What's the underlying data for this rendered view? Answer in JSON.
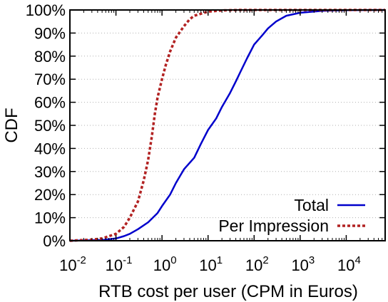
{
  "chart_data": {
    "type": "line",
    "xlabel": "RTB cost per user (CPM in Euros)",
    "ylabel": "CDF",
    "x_scale": "log",
    "xlim": [
      0.01,
      70000
    ],
    "ylim": [
      0,
      100
    ],
    "grid": true,
    "legend_position": "bottom-right",
    "x_ticks": [
      {
        "value": 0.01,
        "base": "10",
        "exp": "-2"
      },
      {
        "value": 0.1,
        "base": "10",
        "exp": "-1"
      },
      {
        "value": 1,
        "base": "10",
        "exp": "0"
      },
      {
        "value": 10,
        "base": "10",
        "exp": "1"
      },
      {
        "value": 100,
        "base": "10",
        "exp": "2"
      },
      {
        "value": 1000,
        "base": "10",
        "exp": "3"
      },
      {
        "value": 10000,
        "base": "10",
        "exp": "4"
      }
    ],
    "y_ticks": [
      {
        "value": 0,
        "label": "0%"
      },
      {
        "value": 10,
        "label": "10%"
      },
      {
        "value": 20,
        "label": "20%"
      },
      {
        "value": 30,
        "label": "30%"
      },
      {
        "value": 40,
        "label": "40%"
      },
      {
        "value": 50,
        "label": "50%"
      },
      {
        "value": 60,
        "label": "60%"
      },
      {
        "value": 70,
        "label": "70%"
      },
      {
        "value": 80,
        "label": "80%"
      },
      {
        "value": 90,
        "label": "90%"
      },
      {
        "value": 100,
        "label": "100%"
      }
    ],
    "series": [
      {
        "name": "Total",
        "color": "#0000cc",
        "style": "solid",
        "points": [
          [
            0.01,
            0
          ],
          [
            0.05,
            0.3
          ],
          [
            0.1,
            1
          ],
          [
            0.15,
            2
          ],
          [
            0.2,
            3
          ],
          [
            0.3,
            5
          ],
          [
            0.5,
            8
          ],
          [
            0.8,
            12
          ],
          [
            1,
            15
          ],
          [
            1.5,
            20
          ],
          [
            2,
            25
          ],
          [
            3,
            31
          ],
          [
            5,
            36
          ],
          [
            7,
            42
          ],
          [
            10,
            48
          ],
          [
            15,
            53
          ],
          [
            20,
            58
          ],
          [
            30,
            64
          ],
          [
            40,
            69
          ],
          [
            50,
            73
          ],
          [
            70,
            79
          ],
          [
            100,
            85
          ],
          [
            150,
            89
          ],
          [
            200,
            92
          ],
          [
            300,
            95
          ],
          [
            500,
            97.5
          ],
          [
            1000,
            98.8
          ],
          [
            3000,
            99.6
          ],
          [
            10000,
            99.9
          ],
          [
            70000,
            100
          ]
        ]
      },
      {
        "name": "Per Impression",
        "color": "#b22222",
        "style": "dotted",
        "points": [
          [
            0.01,
            0
          ],
          [
            0.03,
            0.5
          ],
          [
            0.05,
            1
          ],
          [
            0.1,
            3
          ],
          [
            0.15,
            6
          ],
          [
            0.2,
            10
          ],
          [
            0.3,
            17
          ],
          [
            0.4,
            26
          ],
          [
            0.5,
            35
          ],
          [
            0.6,
            45
          ],
          [
            0.7,
            55
          ],
          [
            0.8,
            62
          ],
          [
            1,
            70
          ],
          [
            1.2,
            76
          ],
          [
            1.5,
            82
          ],
          [
            2,
            88
          ],
          [
            3,
            93
          ],
          [
            4,
            96
          ],
          [
            5,
            97.5
          ],
          [
            10,
            99.3
          ],
          [
            20,
            99.8
          ],
          [
            50,
            100
          ],
          [
            70000,
            100
          ]
        ]
      }
    ]
  }
}
